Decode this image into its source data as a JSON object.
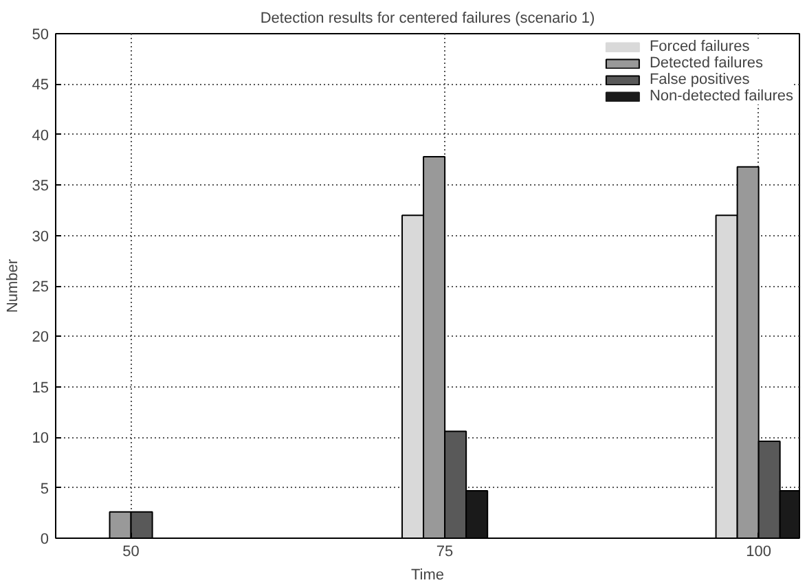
{
  "chart_data": {
    "type": "bar",
    "title": "Detection results for centered failures (scenario 1)",
    "xlabel": "Time",
    "ylabel": "Number",
    "categories": [
      "50",
      "75",
      "100"
    ],
    "series": [
      {
        "name": "Forced failures",
        "color": "#d9d9d9",
        "values": [
          0,
          32,
          32
        ]
      },
      {
        "name": "Detected failures",
        "color": "#999999",
        "values": [
          2.6,
          37.8,
          36.8
        ]
      },
      {
        "name": "False positives",
        "color": "#595959",
        "values": [
          2.6,
          10.6,
          9.6
        ]
      },
      {
        "name": "Non-detected failures",
        "color": "#1a1a1a",
        "values": [
          0,
          4.7,
          4.7
        ]
      }
    ],
    "ylim": [
      0,
      50
    ],
    "yticks": [
      0,
      5,
      10,
      15,
      20,
      25,
      30,
      35,
      40,
      45,
      50
    ],
    "grid": true,
    "legend": "top right"
  }
}
